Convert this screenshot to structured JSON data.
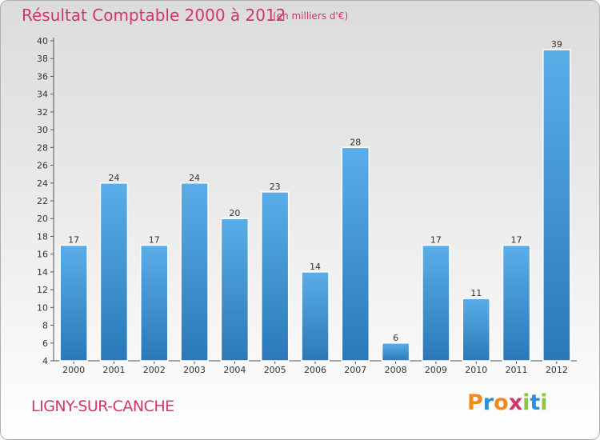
{
  "chart_data": {
    "type": "bar",
    "title": "Résultat Comptable 2000 à 2012",
    "subtitle": "(en milliers d'€)",
    "categories": [
      "2000",
      "2001",
      "2002",
      "2003",
      "2004",
      "2005",
      "2006",
      "2007",
      "2008",
      "2009",
      "2010",
      "2011",
      "2012"
    ],
    "values": [
      17,
      24,
      17,
      24,
      20,
      23,
      14,
      28,
      6,
      17,
      11,
      17,
      39
    ],
    "ylim": [
      4,
      40
    ],
    "yticks": [
      4,
      6,
      8,
      10,
      12,
      14,
      16,
      18,
      20,
      22,
      24,
      26,
      28,
      30,
      32,
      34,
      36,
      38,
      40
    ],
    "xlabel": "",
    "ylabel": "",
    "grid": false,
    "legend": "none",
    "bar_color_top": "#5aaee8",
    "bar_color_bottom": "#2a78b8"
  },
  "footer": {
    "commune": "LIGNY-SUR-CANCHE",
    "logo_letters": [
      "P",
      "r",
      "o",
      "x",
      "i",
      "t",
      "i"
    ],
    "logo_colors": [
      "#f08a1c",
      "#2d8fd8",
      "#f08a1c",
      "#d2356e",
      "#8cc63f",
      "#2d8fd8",
      "#8cc63f"
    ]
  },
  "colors": {
    "title": "#d2356e",
    "axis": "#555555"
  }
}
